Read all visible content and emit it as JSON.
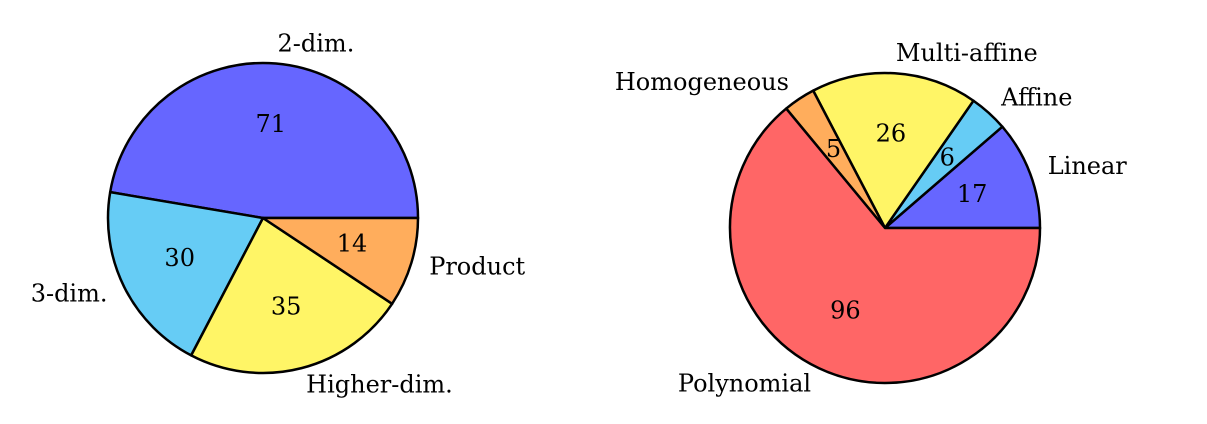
{
  "chart_data": [
    {
      "type": "pie",
      "categories": [
        "2-dim.",
        "3-dim.",
        "Higher-dim.",
        "Product"
      ],
      "values": [
        71,
        30,
        35,
        14
      ],
      "colors": [
        "#6666ff",
        "#66ccf5",
        "#fff566",
        "#ffad5c"
      ]
    },
    {
      "type": "pie",
      "categories": [
        "Linear",
        "Affine",
        "Multi-affine",
        "Homogeneous",
        "Polynomial"
      ],
      "values": [
        17,
        6,
        26,
        5,
        96
      ],
      "colors": [
        "#6666ff",
        "#66ccf5",
        "#fff566",
        "#ffad5c",
        "#ff6666"
      ]
    }
  ]
}
